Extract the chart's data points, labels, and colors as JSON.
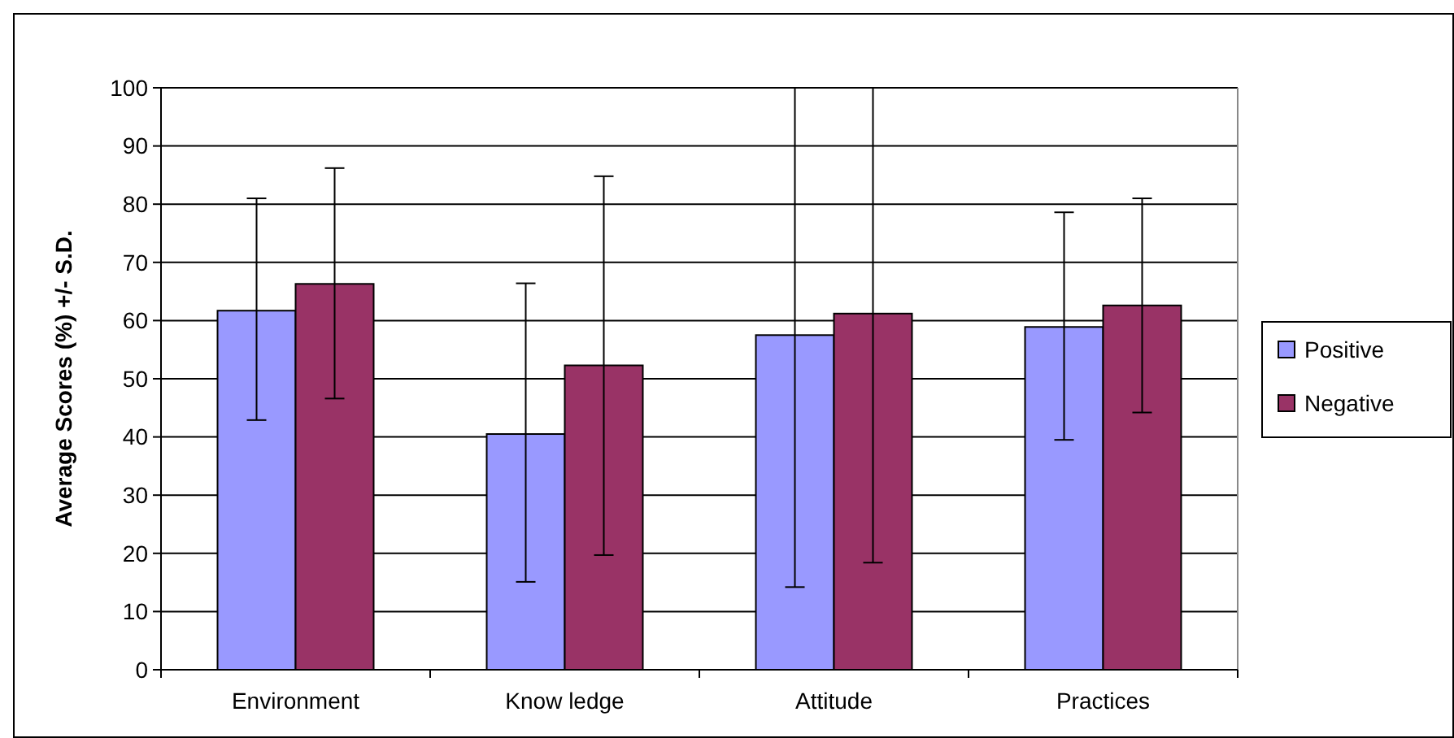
{
  "chart_data": {
    "type": "bar",
    "ylabel": "Average Scores (%) +/- S.D.",
    "categories": [
      "Environment",
      "Know ledge",
      "Attitude",
      "Practices"
    ],
    "series": [
      {
        "name": "Positive",
        "color": "#9999ff",
        "values": [
          61.7,
          40.5,
          57.5,
          58.9
        ],
        "errors": [
          [
            42.9,
            81
          ],
          [
            15.1,
            66.4
          ],
          [
            14.2,
            100
          ],
          [
            39.5,
            78.6
          ]
        ]
      },
      {
        "name": "Negative",
        "color": "#993366",
        "values": [
          66.3,
          52.3,
          61.2,
          62.6
        ],
        "errors": [
          [
            46.6,
            86.2
          ],
          [
            19.7,
            84.8
          ],
          [
            18.4,
            100
          ],
          [
            44.2,
            81
          ]
        ]
      }
    ],
    "ylim": [
      0,
      100
    ],
    "yticks": [
      0,
      10,
      20,
      30,
      40,
      50,
      60,
      70,
      80,
      90,
      100
    ],
    "grid": "y",
    "legend": "right"
  }
}
